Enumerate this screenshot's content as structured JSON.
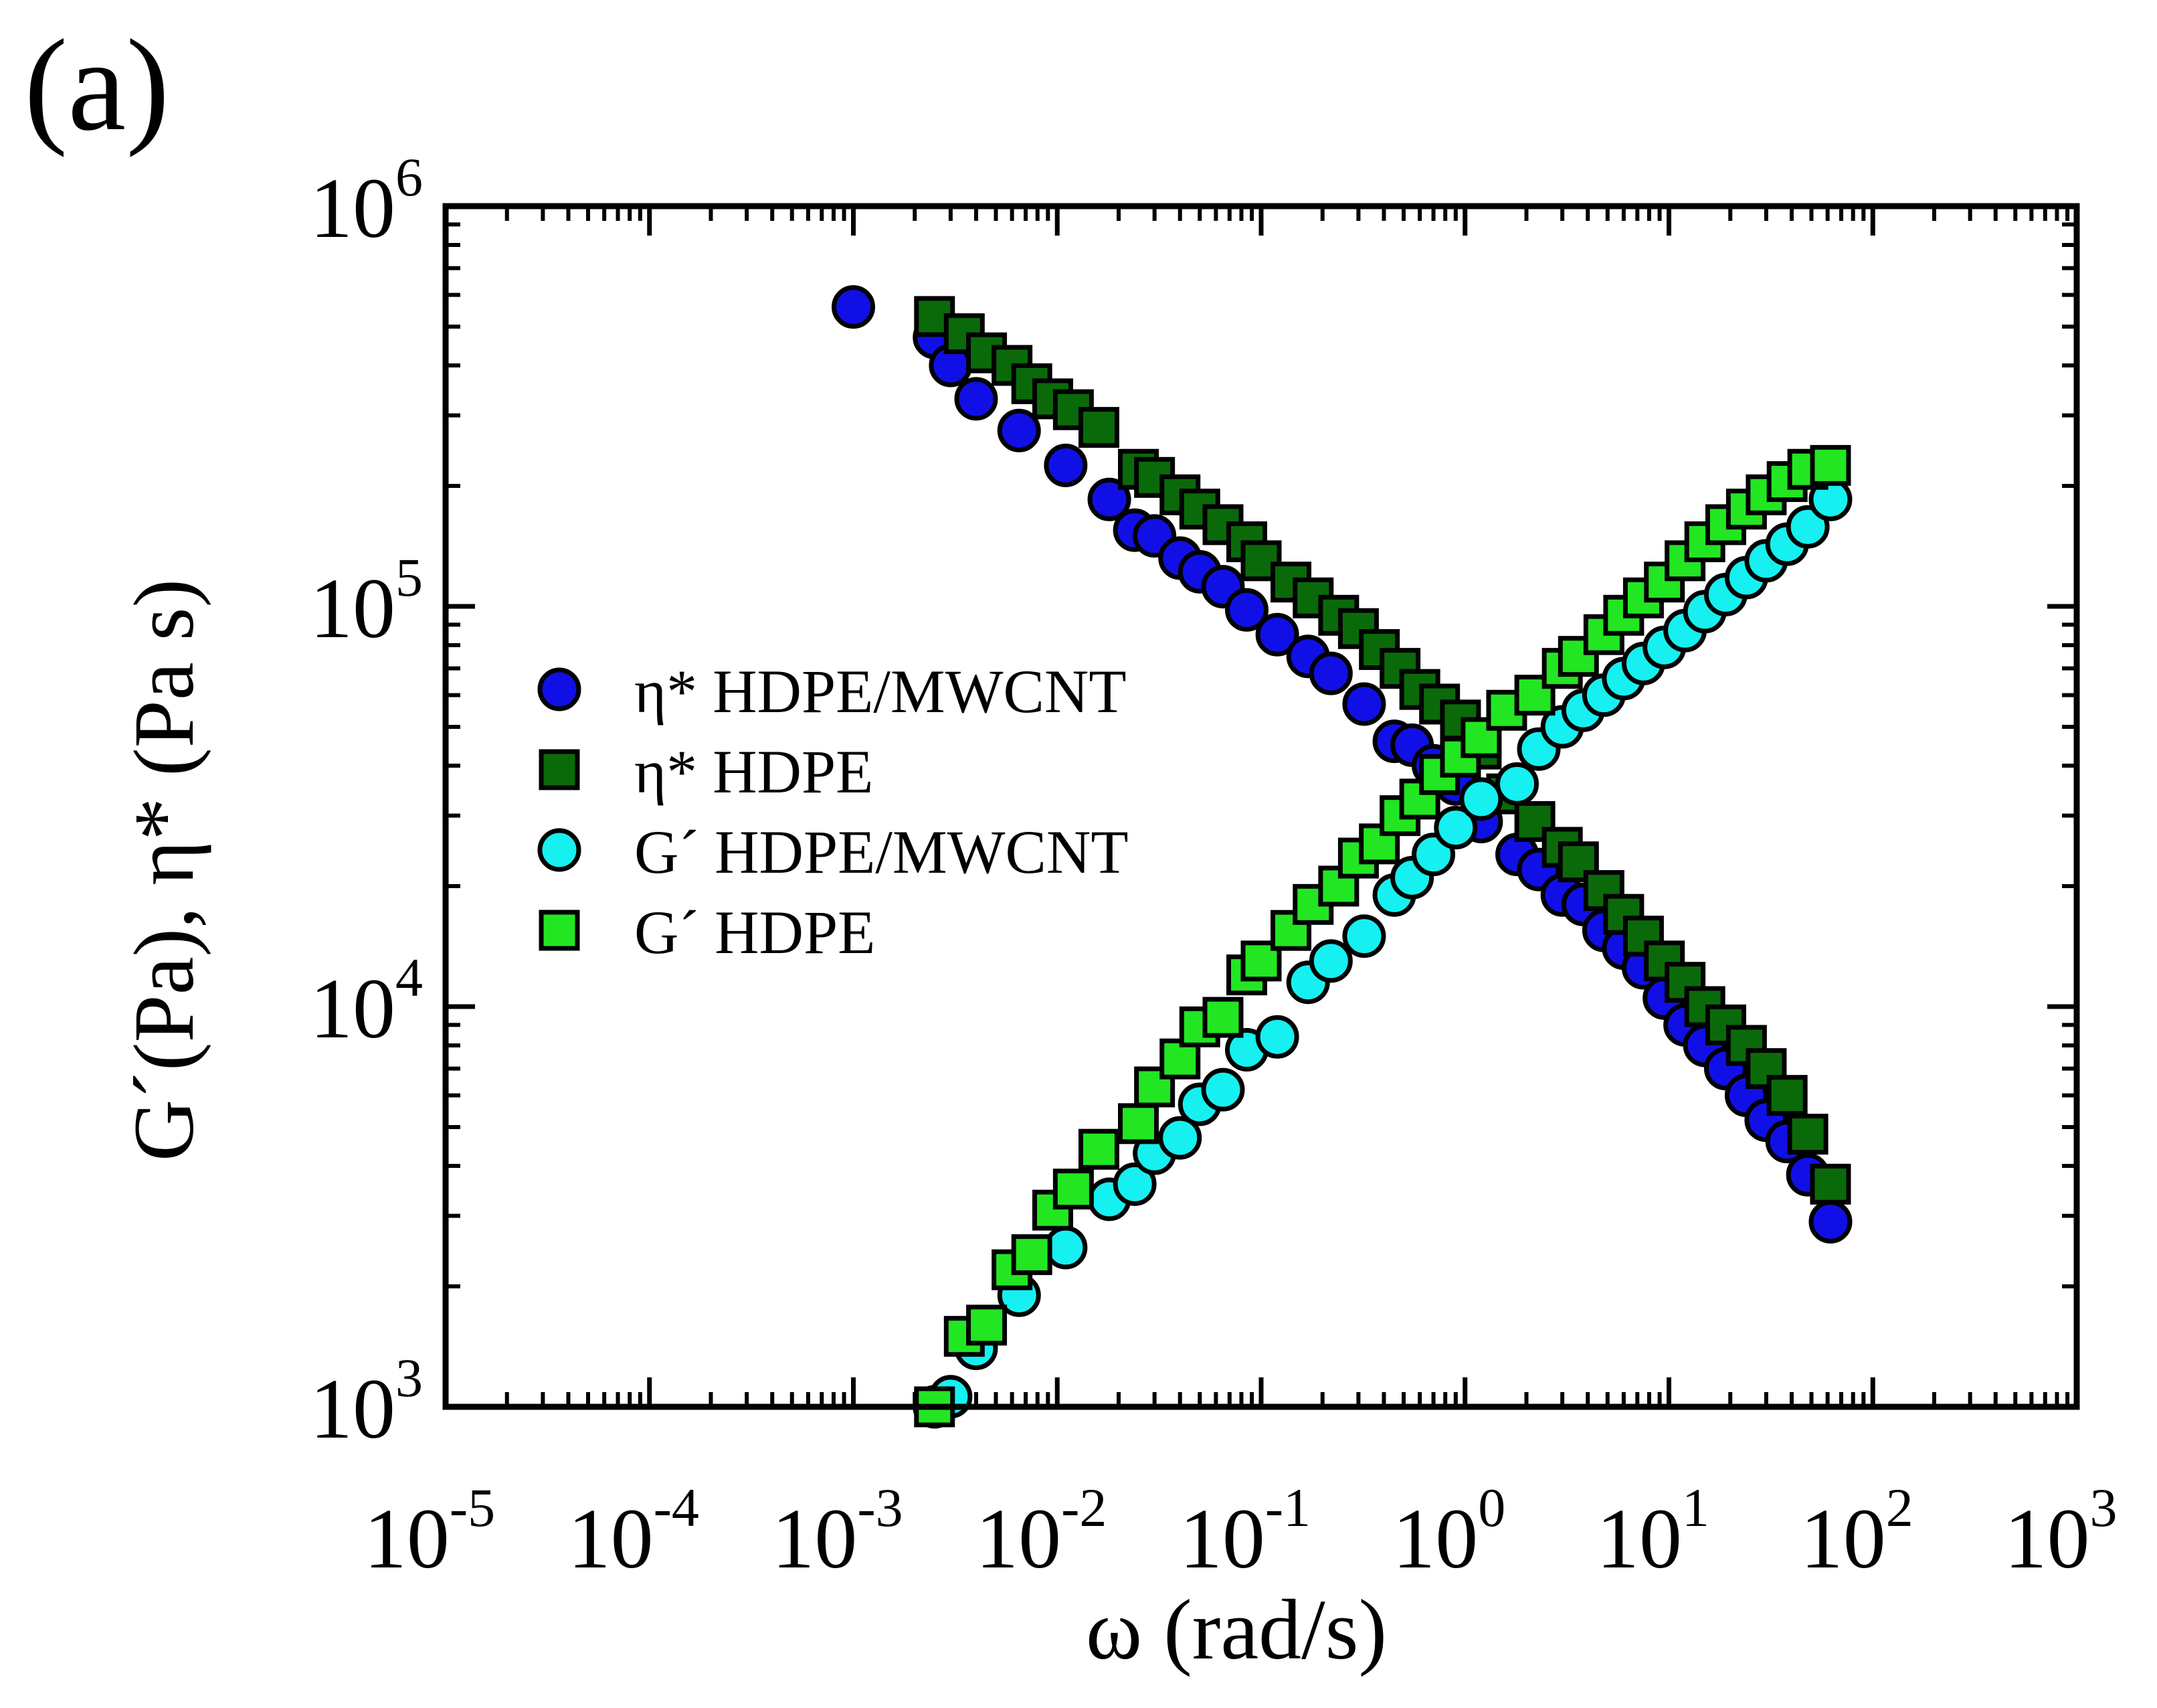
{
  "panel_label": "(a)",
  "chart_data": {
    "type": "scatter",
    "xscale": "log",
    "yscale": "log",
    "xlabel": "ω (rad/s)",
    "ylabel": "G´(Pa), η* (Pa s)",
    "xlim": [
      1e-05,
      1000
    ],
    "ylim": [
      1000,
      1000000
    ],
    "x_ticks": [
      {
        "base": "10",
        "exp": "-5"
      },
      {
        "base": "10",
        "exp": "-4"
      },
      {
        "base": "10",
        "exp": "-3"
      },
      {
        "base": "10",
        "exp": "-2"
      },
      {
        "base": "10",
        "exp": "-1"
      },
      {
        "base": "10",
        "exp": "0"
      },
      {
        "base": "10",
        "exp": "1"
      },
      {
        "base": "10",
        "exp": "2"
      },
      {
        "base": "10",
        "exp": "3"
      }
    ],
    "y_ticks": [
      {
        "base": "10",
        "exp": "3"
      },
      {
        "base": "10",
        "exp": "4"
      },
      {
        "base": "10",
        "exp": "5"
      },
      {
        "base": "10",
        "exp": "6"
      }
    ],
    "legend_position": "center-left",
    "series": [
      {
        "name": "η* HDPE/MWCNT",
        "marker": "circle",
        "fill": "#1010e6",
        "x": [
          0.001,
          0.0025,
          0.003,
          0.004,
          0.0065,
          0.011,
          0.018,
          0.024,
          0.03,
          0.04,
          0.05,
          0.065,
          0.085,
          0.12,
          0.17,
          0.22,
          0.32,
          0.45,
          0.55,
          0.7,
          0.9,
          1.2,
          1.8,
          2.3,
          3,
          3.8,
          4.8,
          6,
          7.5,
          9.5,
          12,
          15,
          19,
          24,
          30,
          38,
          48,
          62
        ],
        "y": [
          560000,
          470000,
          400000,
          330000,
          275000,
          225000,
          185000,
          155000,
          150000,
          132000,
          122000,
          112000,
          98000,
          85000,
          75000,
          68000,
          57000,
          46000,
          45000,
          40000,
          36000,
          29000,
          24000,
          22000,
          19000,
          18000,
          15500,
          14000,
          12500,
          10500,
          9000,
          8000,
          7000,
          6000,
          5200,
          4600,
          3800,
          2900
        ]
      },
      {
        "name": "η* HDPE",
        "marker": "square",
        "fill": "#0a6a0a",
        "x": [
          0.0025,
          0.0035,
          0.0045,
          0.006,
          0.0075,
          0.0095,
          0.012,
          0.016,
          0.025,
          0.03,
          0.04,
          0.05,
          0.065,
          0.085,
          0.1,
          0.14,
          0.18,
          0.24,
          0.3,
          0.38,
          0.48,
          0.6,
          0.75,
          0.95,
          1.2,
          1.6,
          2.2,
          3,
          3.6,
          4.8,
          6,
          7.5,
          9.5,
          12,
          15,
          19,
          24,
          30,
          38,
          48,
          62
        ],
        "y": [
          530000,
          480000,
          430000,
          400000,
          360000,
          330000,
          310000,
          280000,
          220000,
          210000,
          190000,
          175000,
          160000,
          145000,
          130000,
          115000,
          105000,
          95000,
          88000,
          78000,
          70000,
          62000,
          57000,
          52000,
          44000,
          34000,
          29000,
          25000,
          23000,
          19500,
          17000,
          15000,
          13000,
          11500,
          10000,
          9000,
          8000,
          7000,
          6000,
          4800,
          3600
        ]
      },
      {
        "name": "G´ HDPE/MWCNT",
        "marker": "circle",
        "fill": "#16f0f0",
        "x": [
          0.0025,
          0.003,
          0.004,
          0.0065,
          0.011,
          0.018,
          0.024,
          0.03,
          0.04,
          0.05,
          0.065,
          0.085,
          0.12,
          0.17,
          0.22,
          0.32,
          0.45,
          0.55,
          0.7,
          0.9,
          1.2,
          1.8,
          2.3,
          3,
          3.8,
          4.8,
          6,
          7.5,
          9.5,
          12,
          15,
          19,
          24,
          30,
          38,
          48,
          62
        ],
        "y": [
          1000,
          1060,
          1400,
          1900,
          2500,
          3300,
          3600,
          4300,
          4700,
          5700,
          6200,
          7800,
          8400,
          11500,
          13000,
          15000,
          19000,
          21000,
          24000,
          28000,
          33000,
          36000,
          44000,
          50000,
          55000,
          60000,
          66000,
          72000,
          79000,
          87000,
          97000,
          107000,
          118000,
          130000,
          143000,
          158000,
          185000
        ]
      },
      {
        "name": "G´ HDPE",
        "marker": "square",
        "fill": "#22e622",
        "x": [
          0.0025,
          0.0035,
          0.0045,
          0.006,
          0.0075,
          0.0095,
          0.012,
          0.016,
          0.025,
          0.03,
          0.04,
          0.05,
          0.065,
          0.085,
          0.1,
          0.14,
          0.18,
          0.24,
          0.3,
          0.38,
          0.48,
          0.6,
          0.75,
          0.95,
          1.2,
          1.6,
          2.2,
          3,
          3.6,
          4.8,
          6,
          7.5,
          9.5,
          12,
          15,
          19,
          24,
          30,
          38,
          48,
          62
        ],
        "y": [
          1000,
          1500,
          1600,
          2200,
          2400,
          3100,
          3500,
          4400,
          5100,
          6300,
          7400,
          8900,
          9400,
          12000,
          13000,
          15500,
          18000,
          20000,
          23500,
          25500,
          30000,
          33000,
          38000,
          42000,
          47000,
          55000,
          60000,
          70000,
          75000,
          85000,
          95000,
          105000,
          115000,
          130000,
          145000,
          160000,
          175000,
          190000,
          205000,
          220000,
          225000
        ]
      }
    ]
  }
}
